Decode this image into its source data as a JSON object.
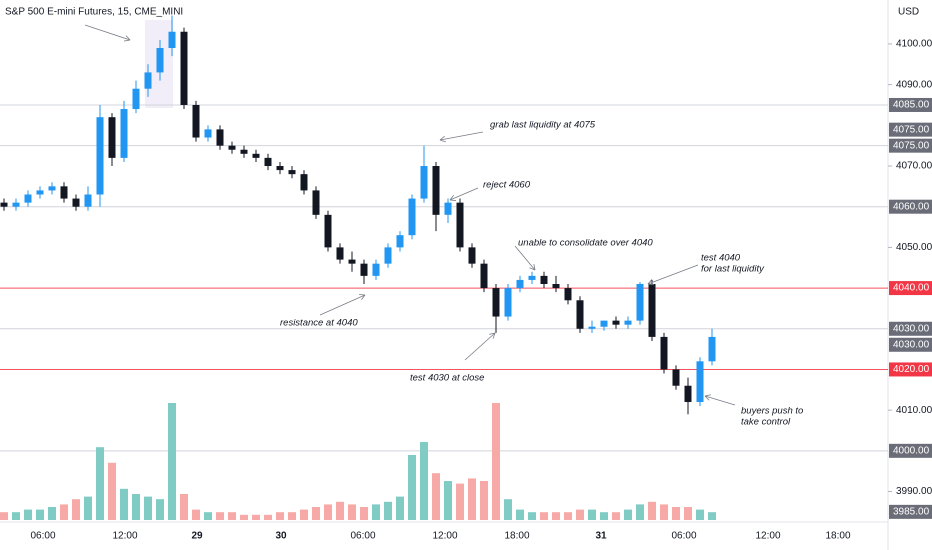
{
  "chart_data": {
    "type": "candlestick",
    "title": "S&P 500 E-mini Futures, 15, CME_MINI",
    "currency": "USD",
    "ylim": [
      3983,
      4110.8
    ],
    "yticks": [
      {
        "value": 4100,
        "label": "4100.00"
      },
      {
        "value": 4090,
        "label": "4090.00"
      },
      {
        "value": 4070,
        "label": "4070.00"
      },
      {
        "value": 4050,
        "label": "4050.00"
      },
      {
        "value": 4010,
        "label": "4010.00"
      },
      {
        "value": 3990,
        "label": "3990.00"
      }
    ],
    "x_labels": [
      "06:00",
      "12:00",
      "29",
      "30",
      "06:00",
      "12:00",
      "18:00",
      "31",
      "06:00",
      "12:00",
      "18:00"
    ],
    "up_color": "#2196f3",
    "down_color": "#131722",
    "volume_up_color": "#80cbc4",
    "volume_down_color": "#f7a9a7",
    "open": [
      4061,
      4060,
      4061,
      4063,
      4064,
      4065,
      4062,
      4060,
      4063,
      4082,
      4072,
      4084,
      4089,
      4093,
      4099,
      4103,
      4085,
      4077,
      4079,
      4075,
      4074,
      4073,
      4072,
      4070,
      4069,
      4068,
      4064,
      4058,
      4050,
      4047,
      4046,
      4043,
      4046,
      4050,
      4053,
      4062,
      4070,
      4058,
      4061,
      4050,
      4046,
      4040,
      4033,
      4040,
      4042,
      4043,
      4041,
      4040,
      4037,
      4030,
      4030.5,
      4032,
      4031,
      4032,
      4041,
      4028,
      4020,
      4016,
      4012,
      4022
    ],
    "high": [
      4062,
      4062,
      4064,
      4065,
      4066,
      4066,
      4063,
      4065,
      4085,
      4083,
      4086,
      4091,
      4095,
      4101,
      4107,
      4104,
      4086,
      4080,
      4080,
      4076,
      4075,
      4074,
      4073,
      4071,
      4070,
      4069,
      4065,
      4059,
      4051,
      4049,
      4047,
      4047,
      4051,
      4054,
      4063,
      4075,
      4071,
      4062,
      4062,
      4051,
      4047,
      4041,
      4041,
      4043,
      4044,
      4044,
      4043,
      4041,
      4038,
      4032,
      4032,
      4033,
      4033,
      4041.5,
      4042,
      4029,
      4021,
      4018,
      4023,
      4030
    ],
    "low": [
      4059,
      4059,
      4060,
      4062,
      4063,
      4061,
      4059,
      4059,
      4060,
      4070,
      4071,
      4083,
      4087,
      4091,
      4097,
      4084,
      4076,
      4076,
      4074,
      4073,
      4072,
      4071,
      4069,
      4068,
      4067,
      4063,
      4057,
      4049,
      4046,
      4044,
      4041,
      4042,
      4045,
      4049,
      4052,
      4061,
      4054,
      4056,
      4049,
      4045,
      4039,
      4029,
      4032,
      4039,
      4041,
      4040,
      4039,
      4036,
      4029,
      4029,
      4029.5,
      4030,
      4030,
      4031,
      4027,
      4019,
      4015,
      4009,
      4011,
      4021
    ],
    "close": [
      4060,
      4061,
      4063,
      4064,
      4065,
      4062,
      4060,
      4063,
      4082,
      4072,
      4084,
      4089,
      4093,
      4099,
      4103,
      4085,
      4077,
      4079,
      4075,
      4074,
      4073,
      4072,
      4070,
      4069,
      4068,
      4064,
      4058,
      4050,
      4047,
      4046,
      4043,
      4046,
      4050,
      4053,
      4062,
      4070,
      4058,
      4061,
      4050,
      4046,
      4040,
      4033,
      4040,
      4042,
      4043,
      4041,
      4040,
      4037,
      4030,
      4030.5,
      4032,
      4031,
      4032,
      4041,
      4028,
      4020,
      4016,
      4012,
      4022,
      4028
    ],
    "volume": [
      3,
      3,
      4,
      4,
      5,
      6,
      8,
      9,
      28,
      22,
      12,
      10,
      9,
      8,
      45,
      10,
      4,
      3,
      3,
      3,
      2,
      2,
      2,
      3,
      3,
      4,
      5,
      6,
      7,
      6,
      5,
      6,
      7,
      9,
      25,
      30,
      18,
      15,
      14,
      16,
      15,
      45,
      8,
      4,
      3,
      3,
      3,
      3,
      4,
      4,
      3,
      3,
      4,
      6,
      7,
      6,
      5,
      5,
      4,
      3
    ],
    "levels": [
      {
        "value": 4085,
        "label": "4085.00",
        "color": "#6a6d78",
        "line": true
      },
      {
        "value": 4075,
        "label": "4075.00",
        "color": "#6a6d78",
        "line": true
      },
      {
        "value": 4075,
        "label": "4075.00",
        "color": "#6a6d78",
        "line": true
      },
      {
        "value": 4060,
        "label": "4060.00",
        "color": "#6a6d78",
        "line": true
      },
      {
        "value": 4040,
        "label": "4040.00",
        "color": "#f23645",
        "line": true
      },
      {
        "value": 4030,
        "label": "4030.00",
        "color": "#6a6d78",
        "line": true
      },
      {
        "value": 4030,
        "label": "4030.00",
        "color": "#6a6d78",
        "line": true
      },
      {
        "value": 4020,
        "label": "4020.00",
        "color": "#f23645",
        "line": true
      },
      {
        "value": 4000,
        "label": "4000.00",
        "color": "#6a6d78",
        "line": true
      },
      {
        "value": 3985,
        "label": "3985.00",
        "color": "#6a6d78",
        "line": false
      }
    ],
    "annotations": [
      [
        "grab last liquidity at 4075"
      ],
      [
        "reject 4060"
      ],
      [
        "unable to consolidate over 4040"
      ],
      [
        "test 4040",
        "for last liquidity"
      ],
      [
        "resistance at 4040"
      ],
      [
        "test 4030 at close"
      ],
      [
        "buyers push to",
        "take control"
      ]
    ]
  }
}
